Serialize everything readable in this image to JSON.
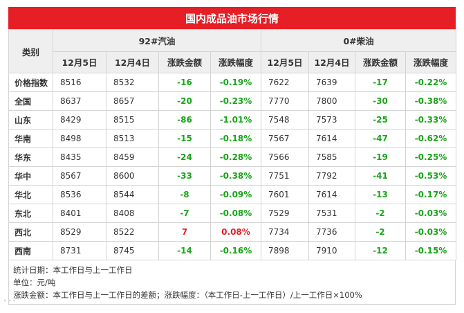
{
  "title": "国内成品油市场行情",
  "header": {
    "category": "类别",
    "gasoline_group": "92#汽油",
    "diesel_group": "0#柴油",
    "columns": [
      "12月5日",
      "12月4日",
      "涨跌金额",
      "涨跌幅度",
      "12月5日",
      "12月4日",
      "涨跌金额",
      "涨跌幅度"
    ]
  },
  "rows": [
    {
      "label": "价格指数",
      "g_today": "8516",
      "g_prev": "8532",
      "g_chg": "-16",
      "g_pct": "-0.19%",
      "d_today": "7622",
      "d_prev": "7639",
      "d_chg": "-17",
      "d_pct": "-0.22%"
    },
    {
      "label": "全国",
      "g_today": "8637",
      "g_prev": "8657",
      "g_chg": "-20",
      "g_pct": "-0.23%",
      "d_today": "7770",
      "d_prev": "7800",
      "d_chg": "-30",
      "d_pct": "-0.38%"
    },
    {
      "label": "山东",
      "g_today": "8429",
      "g_prev": "8515",
      "g_chg": "-86",
      "g_pct": "-1.01%",
      "d_today": "7548",
      "d_prev": "7573",
      "d_chg": "-25",
      "d_pct": "-0.33%"
    },
    {
      "label": "华南",
      "g_today": "8498",
      "g_prev": "8513",
      "g_chg": "-15",
      "g_pct": "-0.18%",
      "d_today": "7567",
      "d_prev": "7614",
      "d_chg": "-47",
      "d_pct": "-0.62%"
    },
    {
      "label": "华东",
      "g_today": "8435",
      "g_prev": "8459",
      "g_chg": "-24",
      "g_pct": "-0.28%",
      "d_today": "7566",
      "d_prev": "7585",
      "d_chg": "-19",
      "d_pct": "-0.25%"
    },
    {
      "label": "华中",
      "g_today": "8567",
      "g_prev": "8600",
      "g_chg": "-33",
      "g_pct": "-0.38%",
      "d_today": "7751",
      "d_prev": "7792",
      "d_chg": "-41",
      "d_pct": "-0.53%"
    },
    {
      "label": "华北",
      "g_today": "8536",
      "g_prev": "8544",
      "g_chg": "-8",
      "g_pct": "-0.09%",
      "d_today": "7601",
      "d_prev": "7614",
      "d_chg": "-13",
      "d_pct": "-0.17%"
    },
    {
      "label": "东北",
      "g_today": "8401",
      "g_prev": "8408",
      "g_chg": "-7",
      "g_pct": "-0.08%",
      "d_today": "7529",
      "d_prev": "7531",
      "d_chg": "-2",
      "d_pct": "-0.03%"
    },
    {
      "label": "西北",
      "g_today": "8529",
      "g_prev": "8522",
      "g_chg": "7",
      "g_pct": "0.08%",
      "d_today": "7734",
      "d_prev": "7736",
      "d_chg": "-2",
      "d_pct": "-0.03%"
    },
    {
      "label": "西南",
      "g_today": "8731",
      "g_prev": "8745",
      "g_chg": "-14",
      "g_pct": "-0.16%",
      "d_today": "7898",
      "d_prev": "7910",
      "d_chg": "-12",
      "d_pct": "-0.15%"
    }
  ],
  "notes": [
    "统计日期：本工作日与上一工作日",
    "单位：元/吨",
    "涨跌金额：本工作日与上一工作日的差额；涨跌幅度：（本工作日-上一工作日）/上一工作日×100%"
  ],
  "colors": {
    "header_red": "#e61e25",
    "down_green": "#1aa51a",
    "up_red": "#e61e25"
  }
}
